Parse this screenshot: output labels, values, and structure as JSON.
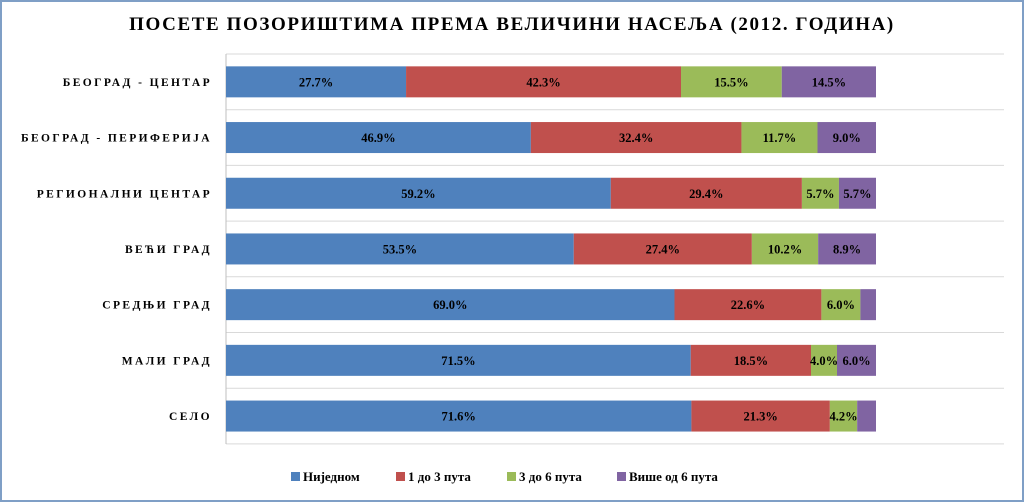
{
  "chart_data": {
    "type": "bar",
    "orientation": "horizontal",
    "stacked": true,
    "title": "ПОСЕТЕ ПОЗОРИШТИМА ПРЕМА ВЕЛИЧИНИ НАСЕЉА (2012. ГОДИНА)",
    "categories": [
      "БЕОГРАД - ЦЕНТАР",
      "БЕОГРАД - ПЕРИФЕРИЈА",
      "РЕГИОНАЛНИ ЦЕНТАР",
      "ВЕЋИ ГРАД",
      "СРЕДЊИ ГРАД",
      "МАЛИ ГРАД",
      "СЕЛО"
    ],
    "series": [
      {
        "name": "Ниједном",
        "color": "#4f81bd",
        "values": [
          27.7,
          46.9,
          59.2,
          53.5,
          69.0,
          71.5,
          71.6
        ],
        "labels": [
          "27.7%",
          "46.9%",
          "59.2%",
          "53.5%",
          "69.0%",
          "71.5%",
          "71.6%"
        ]
      },
      {
        "name": "1 до 3 пута",
        "color": "#c0504d",
        "values": [
          42.3,
          32.4,
          29.4,
          27.4,
          22.6,
          18.5,
          21.3
        ],
        "labels": [
          "42.3%",
          "32.4%",
          "29.4%",
          "27.4%",
          "22.6%",
          "18.5%",
          "21.3%"
        ]
      },
      {
        "name": "3 до 6 пута",
        "color": "#9bbb59",
        "values": [
          15.5,
          11.7,
          5.7,
          10.2,
          6.0,
          4.0,
          4.2
        ],
        "labels": [
          "15.5%",
          "11.7%",
          "5.7%",
          "10.2%",
          "6.0%",
          "4.0%",
          "4.2%"
        ]
      },
      {
        "name": "Више од 6 пута",
        "color": "#8064a2",
        "values": [
          14.5,
          9.0,
          5.7,
          8.9,
          2.4,
          6.0,
          2.9
        ],
        "labels": [
          "14.5%",
          "9.0%",
          "5.7%",
          "8.9%",
          "",
          "6.0%",
          ""
        ]
      }
    ],
    "xlim": [
      0,
      100
    ],
    "grid": true,
    "legend": "bottom"
  }
}
